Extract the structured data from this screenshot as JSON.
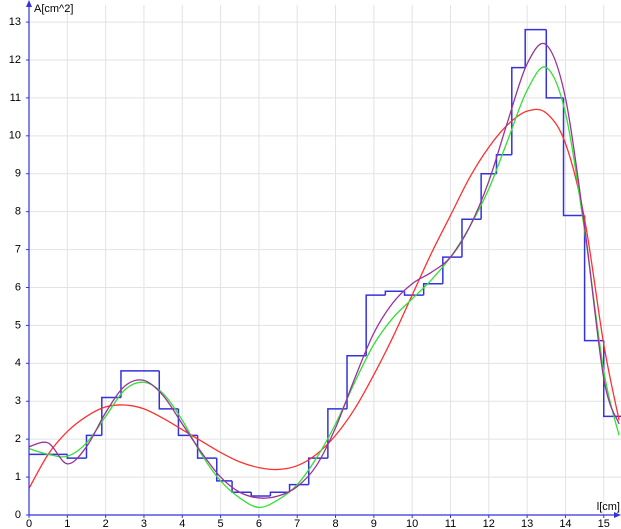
{
  "chart_data": {
    "type": "line",
    "y_label": "A[cm^2]",
    "x_label": "l[cm]",
    "xlim": [
      0,
      15.45
    ],
    "ylim": [
      0,
      13.45
    ],
    "xticks": [
      0,
      1,
      2,
      3,
      4,
      5,
      6,
      7,
      8,
      9,
      10,
      11,
      12,
      13,
      14,
      15
    ],
    "yticks": [
      0,
      1,
      2,
      3,
      4,
      5,
      6,
      7,
      8,
      9,
      10,
      11,
      12,
      13
    ],
    "grid": true,
    "steps": {
      "color": "#3333dd",
      "bins": [
        0,
        1.0,
        1.5,
        1.9,
        2.4,
        3.4,
        3.9,
        4.4,
        4.9,
        5.3,
        5.8,
        6.3,
        6.8,
        7.3,
        7.8,
        8.3,
        8.8,
        9.3,
        9.8,
        10.3,
        10.8,
        11.3,
        11.8,
        12.2,
        12.6,
        12.95,
        13.5,
        13.95,
        14.5,
        15.0,
        15.45
      ],
      "values": [
        1.6,
        1.5,
        2.1,
        3.1,
        3.8,
        2.8,
        2.1,
        1.5,
        0.9,
        0.6,
        0.5,
        0.6,
        0.8,
        1.5,
        2.8,
        4.2,
        5.8,
        5.9,
        5.8,
        6.1,
        6.8,
        7.8,
        9.0,
        9.5,
        11.8,
        12.8,
        11.0,
        7.9,
        4.6,
        2.6
      ]
    },
    "x": [
      0,
      0.5,
      1,
      1.5,
      2,
      2.5,
      3,
      3.5,
      4,
      4.5,
      5,
      5.5,
      6,
      6.5,
      7,
      7.5,
      8,
      8.5,
      9,
      9.5,
      10,
      10.5,
      11,
      11.5,
      12,
      12.5,
      13,
      13.5,
      14,
      14.5,
      15,
      15.4
    ],
    "series": [
      {
        "color": "#ff3030",
        "values": [
          0.7,
          1.6,
          2.2,
          2.6,
          2.85,
          2.9,
          2.8,
          2.55,
          2.25,
          1.95,
          1.65,
          1.4,
          1.25,
          1.2,
          1.3,
          1.6,
          2.1,
          2.8,
          3.7,
          4.7,
          5.8,
          6.9,
          7.9,
          8.9,
          9.7,
          10.3,
          10.65,
          10.6,
          9.8,
          7.8,
          4.5,
          2.5
        ]
      },
      {
        "color": "#33e033",
        "values": [
          1.75,
          1.6,
          1.55,
          1.9,
          2.6,
          3.3,
          3.5,
          3.2,
          2.5,
          1.6,
          0.9,
          0.45,
          0.2,
          0.4,
          0.8,
          1.5,
          2.4,
          3.5,
          4.5,
          5.2,
          5.7,
          6.2,
          6.8,
          7.6,
          8.6,
          9.9,
          11.2,
          11.8,
          10.6,
          7.5,
          3.8,
          2.1
        ]
      },
      {
        "color": "#993399",
        "values": [
          1.8,
          1.9,
          1.35,
          1.8,
          2.7,
          3.4,
          3.55,
          3.15,
          2.4,
          1.65,
          1.0,
          0.6,
          0.45,
          0.5,
          0.75,
          1.3,
          2.3,
          3.6,
          4.8,
          5.6,
          6.1,
          6.4,
          6.8,
          7.6,
          8.8,
          10.4,
          11.9,
          12.4,
          11.0,
          7.6,
          3.6,
          2.4
        ]
      }
    ]
  }
}
